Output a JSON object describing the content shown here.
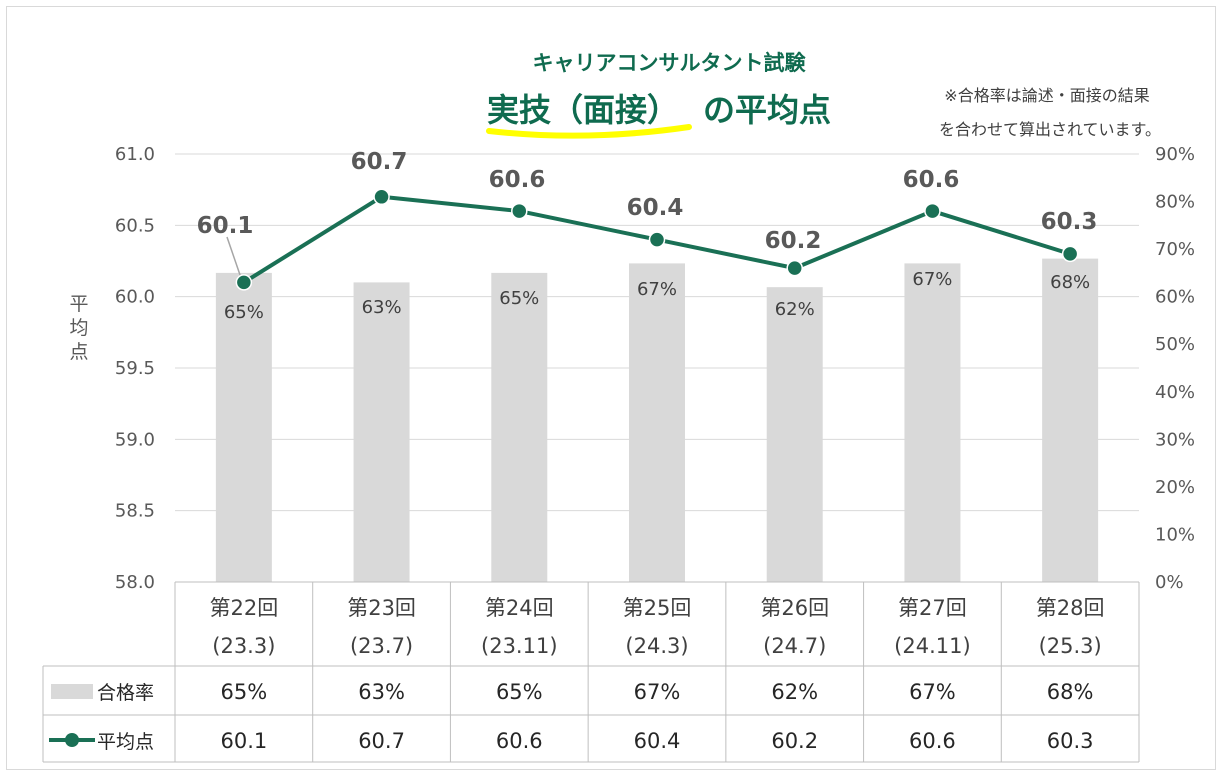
{
  "title_sub": "キャリアコンサルタント試験",
  "title_main_highlight": "実技（面接）",
  "title_main_rest": "の平均点",
  "note_line1": "※合格率は論述・面接の結果",
  "note_line2": "を合わせて算出されています。",
  "colors": {
    "line": "#1a7055",
    "bar": "#d9d9d9",
    "highlight": "#ffff00",
    "title": "#0f6b4f"
  },
  "chart_data": {
    "type": "bar+line",
    "categories": [
      {
        "line1": "第22回",
        "line2": "(23.3)"
      },
      {
        "line1": "第23回",
        "line2": "(23.7)"
      },
      {
        "line1": "第24回",
        "line2": "(23.11)"
      },
      {
        "line1": "第25回",
        "line2": "(24.3)"
      },
      {
        "line1": "第26回",
        "line2": "(24.7)"
      },
      {
        "line1": "第27回",
        "line2": "(24.11)"
      },
      {
        "line1": "第28回",
        "line2": "(25.3)"
      }
    ],
    "series": [
      {
        "name": "合格率",
        "type": "bar",
        "axis": "right",
        "values": [
          65,
          63,
          65,
          67,
          62,
          67,
          68
        ],
        "labels": [
          "65%",
          "63%",
          "65%",
          "67%",
          "62%",
          "67%",
          "68%"
        ]
      },
      {
        "name": "平均点",
        "type": "line",
        "axis": "left",
        "values": [
          60.1,
          60.7,
          60.6,
          60.4,
          60.2,
          60.6,
          60.3
        ],
        "labels": [
          "60.1",
          "60.7",
          "60.6",
          "60.4",
          "60.2",
          "60.6",
          "60.3"
        ]
      }
    ],
    "ylabel": "平均点",
    "ylim_left": [
      58.0,
      61.0
    ],
    "yticks_left": [
      "61.0",
      "60.5",
      "60.0",
      "59.5",
      "59.0",
      "58.5",
      "58.0"
    ],
    "ylim_right": [
      0,
      90
    ],
    "yticks_right": [
      "90%",
      "80%",
      "70%",
      "60%",
      "50%",
      "40%",
      "30%",
      "20%",
      "10%",
      "0%"
    ],
    "grid": true,
    "legend": "data-table"
  }
}
